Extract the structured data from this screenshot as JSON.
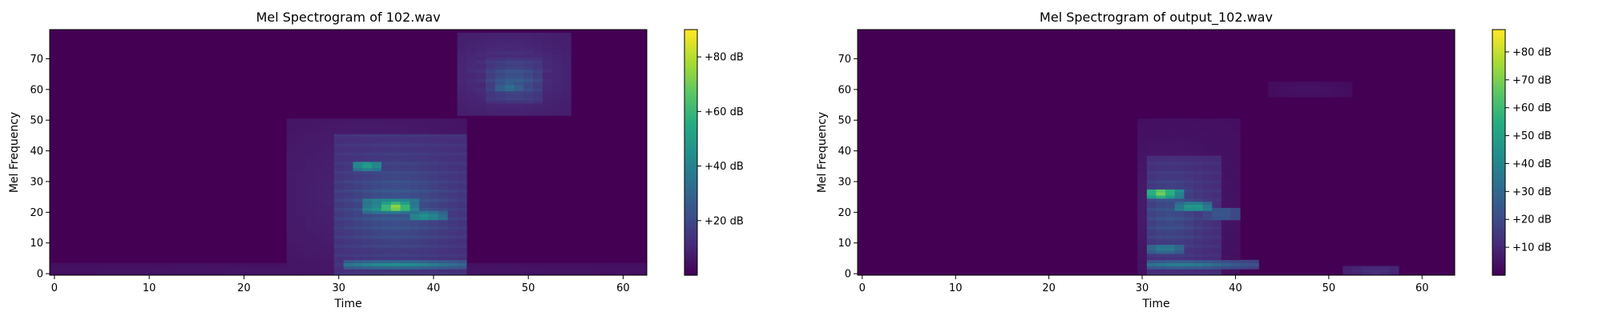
{
  "chart_data": [
    {
      "type": "heatmap",
      "title": "Mel Spectrogram of 102.wav",
      "xlabel": "Time",
      "ylabel": "Mel Frequency",
      "xlim": [
        -0.5,
        62.5
      ],
      "ylim": [
        -0.5,
        79.5
      ],
      "xticks": [
        0,
        10,
        20,
        30,
        40,
        50,
        60
      ],
      "yticks": [
        0,
        10,
        20,
        30,
        40,
        50,
        60,
        70
      ],
      "colormap": "viridis",
      "colorbar": {
        "vmin": 0,
        "vmax": 90,
        "ticks": [
          20,
          40,
          60,
          80
        ],
        "tick_labels": [
          "+20 dB",
          "+40 dB",
          "+60 dB",
          "+80 dB"
        ]
      },
      "grid": false,
      "cols": 63,
      "rows": 80,
      "blobs": [
        {
          "t0": 25,
          "t1": 43,
          "m0": 0,
          "m1": 50,
          "level": 0.1,
          "tc": 33,
          "mc": 26,
          "st": 7,
          "sm": 16
        },
        {
          "t0": 30,
          "t1": 43,
          "m0": 0,
          "m1": 45,
          "level": 0.28,
          "tc": 36,
          "mc": 22,
          "st": 4,
          "sm": 10
        },
        {
          "t0": 33,
          "t1": 38,
          "m0": 20,
          "m1": 24,
          "level": 0.55,
          "tc": 35.5,
          "mc": 22,
          "st": 2.5,
          "sm": 2
        },
        {
          "t0": 35,
          "t1": 37,
          "m0": 21,
          "m1": 23,
          "level": 0.9,
          "tc": 36,
          "mc": 22,
          "st": 1,
          "sm": 1
        },
        {
          "t0": 38,
          "t1": 41,
          "m0": 18,
          "m1": 20,
          "level": 0.55,
          "tc": 39,
          "mc": 19,
          "st": 1.5,
          "sm": 1
        },
        {
          "t0": 32,
          "t1": 34,
          "m0": 34,
          "m1": 36,
          "level": 0.6,
          "tc": 33,
          "mc": 35,
          "st": 1.2,
          "sm": 1
        },
        {
          "t0": 31,
          "t1": 43,
          "m0": 2,
          "m1": 4,
          "level": 0.45,
          "tc": 36,
          "mc": 3,
          "st": 5,
          "sm": 1
        },
        {
          "t0": 43,
          "t1": 54,
          "m0": 52,
          "m1": 78,
          "level": 0.15,
          "tc": 48,
          "mc": 65,
          "st": 4,
          "sm": 8
        },
        {
          "t0": 46,
          "t1": 51,
          "m0": 56,
          "m1": 70,
          "level": 0.28,
          "tc": 48.5,
          "mc": 63,
          "st": 2,
          "sm": 4
        },
        {
          "t0": 47,
          "t1": 49,
          "m0": 60,
          "m1": 62,
          "level": 0.4,
          "tc": 48,
          "mc": 61,
          "st": 1,
          "sm": 1
        },
        {
          "t0": 0,
          "t1": 62,
          "m0": 0,
          "m1": 3,
          "level": 0.06,
          "tc": 31,
          "mc": 1,
          "st": 30,
          "sm": 2
        }
      ]
    },
    {
      "type": "heatmap",
      "title": "Mel Spectrogram of output_102.wav",
      "xlabel": "Time",
      "ylabel": "Mel Frequency",
      "xlim": [
        -0.5,
        63.5
      ],
      "ylim": [
        -0.5,
        79.5
      ],
      "xticks": [
        0,
        10,
        20,
        30,
        40,
        50,
        60
      ],
      "yticks": [
        0,
        10,
        20,
        30,
        40,
        50,
        60,
        70
      ],
      "colormap": "viridis",
      "colorbar": {
        "vmin": 0,
        "vmax": 88,
        "ticks": [
          10,
          20,
          30,
          40,
          50,
          60,
          70,
          80
        ],
        "tick_labels": [
          "+10 dB",
          "+20 dB",
          "+30 dB",
          "+40 dB",
          "+50 dB",
          "+60 dB",
          "+70 dB",
          "+80 dB"
        ]
      },
      "grid": false,
      "cols": 64,
      "rows": 80,
      "blobs": [
        {
          "t0": 30,
          "t1": 40,
          "m0": 0,
          "m1": 50,
          "level": 0.08,
          "tc": 33,
          "mc": 22,
          "st": 4,
          "sm": 14
        },
        {
          "t0": 31,
          "t1": 38,
          "m0": 0,
          "m1": 38,
          "level": 0.25,
          "tc": 33,
          "mc": 20,
          "st": 2.5,
          "sm": 9
        },
        {
          "t0": 31,
          "t1": 34,
          "m0": 25,
          "m1": 27,
          "level": 0.85,
          "tc": 32,
          "mc": 26,
          "st": 1,
          "sm": 1
        },
        {
          "t0": 34,
          "t1": 37,
          "m0": 21,
          "m1": 23,
          "level": 0.6,
          "tc": 35.5,
          "mc": 22,
          "st": 1.2,
          "sm": 1
        },
        {
          "t0": 31,
          "t1": 34,
          "m0": 7,
          "m1": 9,
          "level": 0.45,
          "tc": 32.5,
          "mc": 8,
          "st": 1.5,
          "sm": 1
        },
        {
          "t0": 31,
          "t1": 42,
          "m0": 2,
          "m1": 4,
          "level": 0.4,
          "tc": 34,
          "mc": 3,
          "st": 4,
          "sm": 1
        },
        {
          "t0": 37,
          "t1": 40,
          "m0": 18,
          "m1": 21,
          "level": 0.3,
          "tc": 38.5,
          "mc": 19.5,
          "st": 1.5,
          "sm": 1.5
        },
        {
          "t0": 52,
          "t1": 57,
          "m0": 0,
          "m1": 2,
          "level": 0.15,
          "tc": 55,
          "mc": 1,
          "st": 2,
          "sm": 1
        },
        {
          "t0": 44,
          "t1": 52,
          "m0": 58,
          "m1": 62,
          "level": 0.05,
          "tc": 48,
          "mc": 60,
          "st": 3,
          "sm": 2
        }
      ]
    }
  ]
}
